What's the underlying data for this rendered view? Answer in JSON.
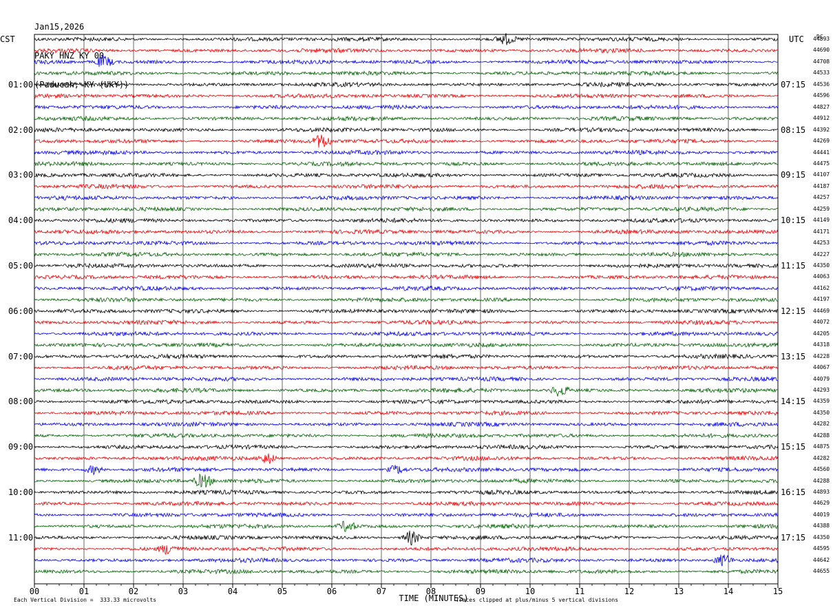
{
  "header": {
    "date": "Jan15,2026",
    "station": "PAKY HNZ KY 00",
    "location": "(Paducah, KY (UKY))"
  },
  "left_zone": "CST",
  "right_zone": "UTC",
  "dc_label": "DC",
  "colors": {
    "trace_cycle": [
      "#000000",
      "#ee0000",
      "#0000ee",
      "#006400"
    ],
    "grid": "#000000"
  },
  "chart_data": {
    "type": "line",
    "title": "PAKY HNZ KY 00",
    "xlabel": "TIME (MINUTES)",
    "x_ticks": [
      "00",
      "01",
      "02",
      "03",
      "04",
      "05",
      "06",
      "07",
      "08",
      "09",
      "10",
      "11",
      "12",
      "13",
      "14",
      "15"
    ],
    "xlim": [
      0,
      15
    ],
    "left_hour_labels": [
      {
        "row": 4,
        "label": "01:00"
      },
      {
        "row": 8,
        "label": "02:00"
      },
      {
        "row": 12,
        "label": "03:00"
      },
      {
        "row": 16,
        "label": "04:00"
      },
      {
        "row": 20,
        "label": "05:00"
      },
      {
        "row": 24,
        "label": "06:00"
      },
      {
        "row": 28,
        "label": "07:00"
      },
      {
        "row": 32,
        "label": "08:00"
      },
      {
        "row": 36,
        "label": "09:00"
      },
      {
        "row": 40,
        "label": "10:00"
      },
      {
        "row": 44,
        "label": "11:00"
      }
    ],
    "right_hour_labels": [
      {
        "row": 4,
        "label": "07:15"
      },
      {
        "row": 8,
        "label": "08:15"
      },
      {
        "row": 12,
        "label": "09:15"
      },
      {
        "row": 16,
        "label": "10:15"
      },
      {
        "row": 20,
        "label": "11:15"
      },
      {
        "row": 24,
        "label": "12:15"
      },
      {
        "row": 28,
        "label": "13:15"
      },
      {
        "row": 32,
        "label": "14:15"
      },
      {
        "row": 36,
        "label": "15:15"
      },
      {
        "row": 40,
        "label": "16:15"
      },
      {
        "row": 44,
        "label": "17:15"
      }
    ],
    "rows": 48,
    "dc_offsets": [
      "44893",
      "44690",
      "44708",
      "44533",
      "44536",
      "44596",
      "44827",
      "44912",
      "44392",
      "44269",
      "44441",
      "44475",
      "44107",
      "44187",
      "44257",
      "44259",
      "44149",
      "44171",
      "44253",
      "44227",
      "44350",
      "44063",
      "44162",
      "44197",
      "44469",
      "44072",
      "44205",
      "44318",
      "44228",
      "44067",
      "44079",
      "44293",
      "44359",
      "44350",
      "44282",
      "44288",
      "44875",
      "44282",
      "44560",
      "44288",
      "44893",
      "44629",
      "44019",
      "44388",
      "44350",
      "44595",
      "44642",
      "44655"
    ],
    "events": [
      {
        "row": 0,
        "minute": 9.5,
        "amp": 1.8
      },
      {
        "row": 2,
        "minute": 1.4,
        "amp": 2.2
      },
      {
        "row": 9,
        "minute": 5.8,
        "amp": 2.6
      },
      {
        "row": 31,
        "minute": 10.6,
        "amp": 2.2
      },
      {
        "row": 37,
        "minute": 4.7,
        "amp": 2.0
      },
      {
        "row": 38,
        "minute": 1.2,
        "amp": 1.6
      },
      {
        "row": 38,
        "minute": 7.3,
        "amp": 1.6
      },
      {
        "row": 39,
        "minute": 3.4,
        "amp": 2.6
      },
      {
        "row": 43,
        "minute": 6.3,
        "amp": 2.0
      },
      {
        "row": 44,
        "minute": 7.6,
        "amp": 2.6
      },
      {
        "row": 45,
        "minute": 2.7,
        "amp": 1.8
      },
      {
        "row": 46,
        "minute": 13.9,
        "amp": 2.2
      }
    ]
  },
  "footer": {
    "scale": "Each Vertical Division =  333.33 microvolts",
    "clip_note": "Traces clipped at plus/minus 5 vertical divisions"
  }
}
